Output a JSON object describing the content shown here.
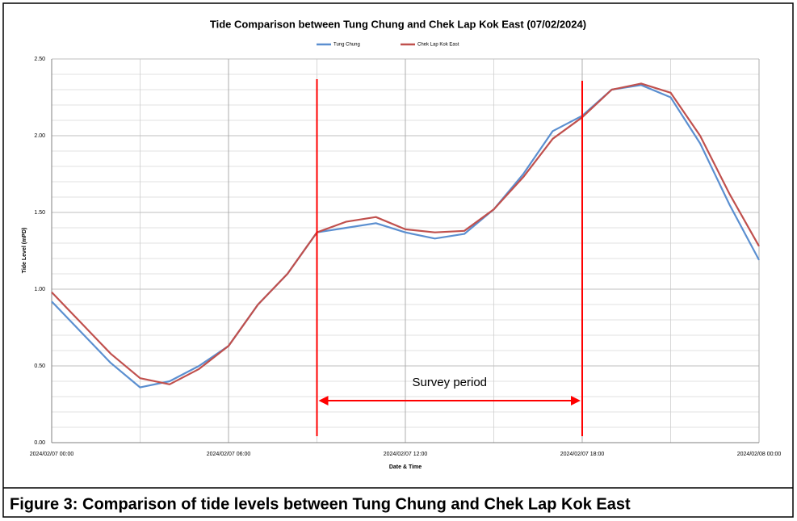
{
  "chart_data": {
    "type": "line",
    "title": "Tide Comparison between Tung Chung and Chek Lap Kok East (07/02/2024)",
    "x_label": "Date & Time",
    "y_label": "Tide Level (mPD)",
    "caption": "Figure 3: Comparison of tide levels between Tung Chung and Chek Lap Kok East",
    "x": [
      "2024/02/07 00:00",
      "2024/02/07 01:00",
      "2024/02/07 02:00",
      "2024/02/07 03:00",
      "2024/02/07 04:00",
      "2024/02/07 05:00",
      "2024/02/07 06:00",
      "2024/02/07 07:00",
      "2024/02/07 08:00",
      "2024/02/07 09:00",
      "2024/02/07 10:00",
      "2024/02/07 11:00",
      "2024/02/07 12:00",
      "2024/02/07 13:00",
      "2024/02/07 14:00",
      "2024/02/07 15:00",
      "2024/02/07 16:00",
      "2024/02/07 17:00",
      "2024/02/07 18:00",
      "2024/02/07 19:00",
      "2024/02/07 20:00",
      "2024/02/07 21:00",
      "2024/02/07 22:00",
      "2024/02/07 23:00",
      "2024/02/08 00:00"
    ],
    "series": [
      {
        "name": "Tung Chung",
        "color": "#5b8fd0",
        "values": [
          0.92,
          0.72,
          0.52,
          0.36,
          0.4,
          0.5,
          0.63,
          0.9,
          1.1,
          1.37,
          1.4,
          1.43,
          1.37,
          1.33,
          1.36,
          1.52,
          1.75,
          2.03,
          2.13,
          2.3,
          2.33,
          2.25,
          1.95,
          1.55,
          1.19
        ]
      },
      {
        "name": "Chek Lap Kok East",
        "color": "#c0504d",
        "values": [
          0.98,
          0.78,
          0.58,
          0.42,
          0.38,
          0.48,
          0.63,
          0.9,
          1.1,
          1.37,
          1.44,
          1.47,
          1.39,
          1.37,
          1.38,
          1.52,
          1.73,
          1.98,
          2.12,
          2.3,
          2.34,
          2.28,
          2.0,
          1.62,
          1.28
        ]
      }
    ],
    "xlim": [
      "2024/02/07 00:00",
      "2024/02/08 00:00"
    ],
    "xticks": [
      "2024/02/07 00:00",
      "2024/02/07 06:00",
      "2024/02/07 12:00",
      "2024/02/07 18:00",
      "2024/02/08 00:00"
    ],
    "ylim": [
      0,
      2.5
    ],
    "yticks": [
      {
        "value": 0,
        "label": "0.00"
      },
      {
        "value": 0.5,
        "label": "0.50"
      },
      {
        "value": 1,
        "label": "1.00"
      },
      {
        "value": 1.5,
        "label": "1.50"
      },
      {
        "value": 2,
        "label": "2.00"
      },
      {
        "value": 2.5,
        "label": "2.50"
      }
    ],
    "grid": true,
    "legend": "top",
    "annotations": [
      {
        "text": "Survey period",
        "start": "2024/02/07 09:00",
        "end": "2024/02/07 18:00",
        "color": "#ff0000"
      }
    ]
  }
}
